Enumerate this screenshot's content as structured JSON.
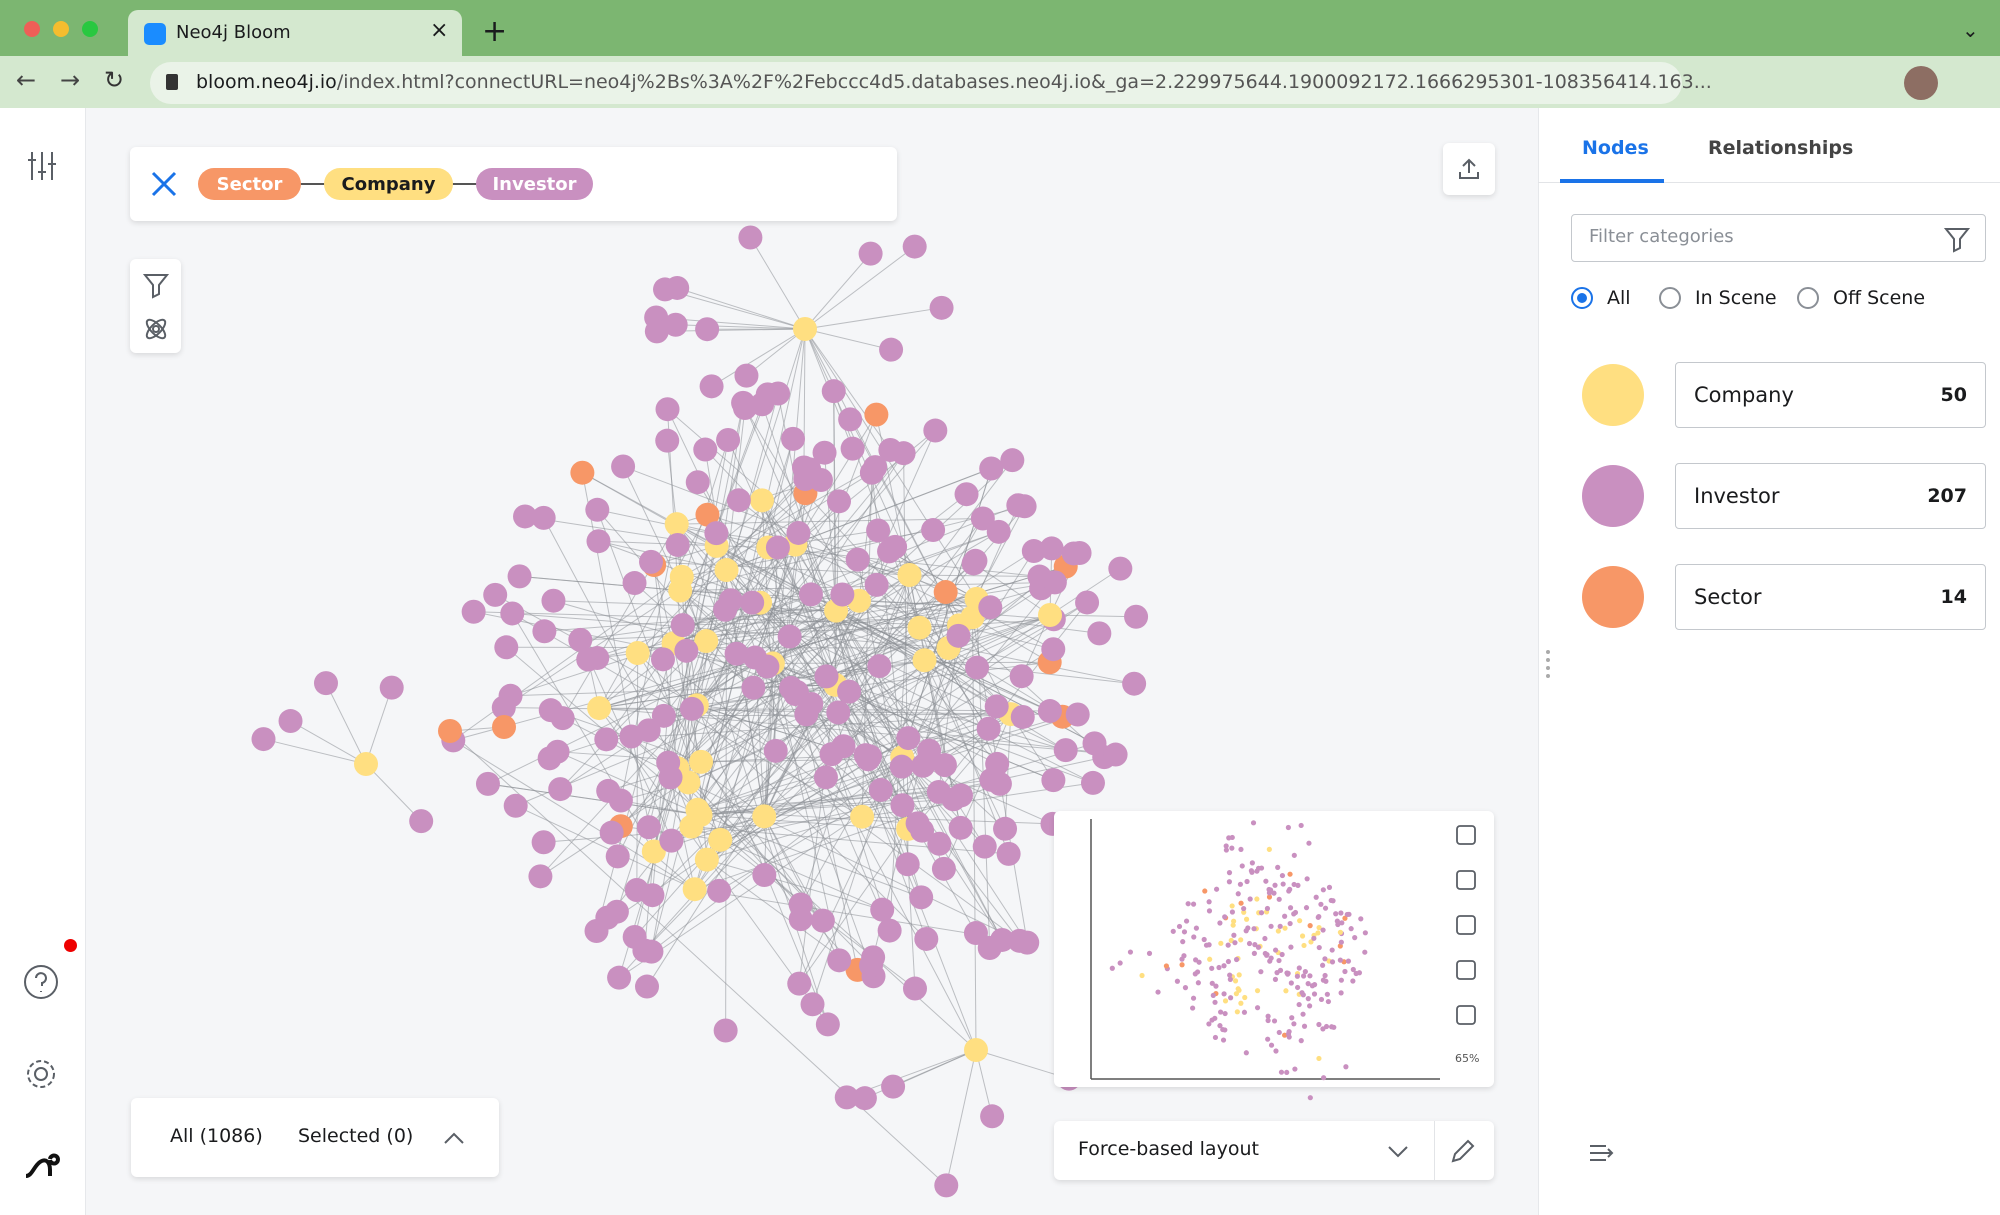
{
  "browser": {
    "tab_title": "Neo4j Bloom",
    "url_host": "bloom.neo4j.io",
    "url_path": "/index.html?connectURL=neo4j%2Bs%3A%2F%2Febccc4d5.databases.neo4j.io&_ga=2.229975644.1900092172.1666295301-108356414.163..."
  },
  "search": {
    "pattern": [
      {
        "label": "Sector",
        "color": "#f79767"
      },
      {
        "label": "Company",
        "color": "#ffdf81"
      },
      {
        "label": "Investor",
        "color": "#c990c0"
      }
    ]
  },
  "legend_panel": {
    "tabs": [
      "Nodes",
      "Relationships"
    ],
    "filter_placeholder": "Filter categories",
    "scene_options": [
      "All",
      "In Scene",
      "Off Scene"
    ],
    "selected_option": 0,
    "categories": [
      {
        "name": "Company",
        "count": 50,
        "color": "#ffdf81"
      },
      {
        "name": "Investor",
        "count": 207,
        "color": "#c990c0"
      },
      {
        "name": "Sector",
        "count": 14,
        "color": "#f79767"
      }
    ]
  },
  "results": {
    "all": "All (1086)",
    "selected": "Selected (0)"
  },
  "layout": {
    "selected": "Force-based layout"
  },
  "minimap": {
    "zoom": "65%"
  }
}
